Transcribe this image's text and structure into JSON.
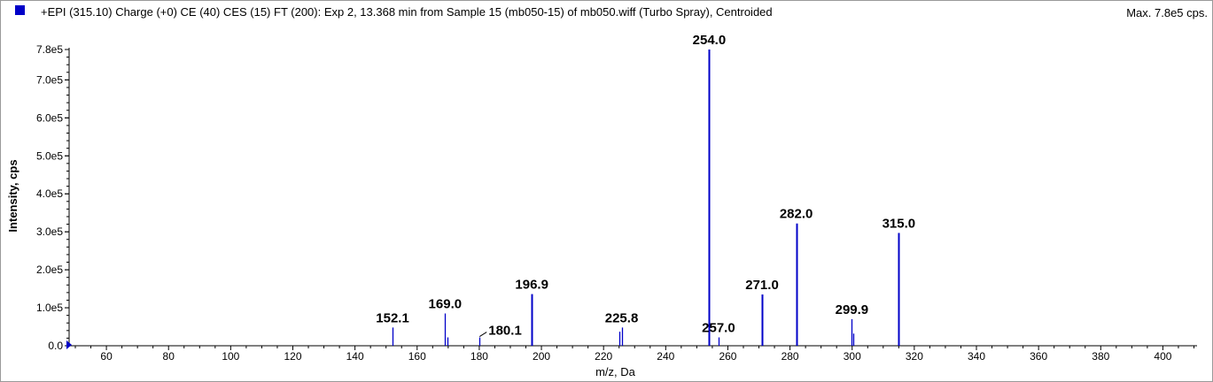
{
  "header": {
    "title": "+EPI (315.10) Charge (+0) CE (40) CES (15) FT (200): Exp 2, 13.368 min from Sample 15 (mb050-15) of mb050.wiff (Turbo Spray), Centroided",
    "max_label": "Max. 7.8e5 cps."
  },
  "colors": {
    "series": "#0000c8",
    "axis": "#000000",
    "legend_swatch": "#0000c8"
  },
  "chart_data": {
    "type": "bar",
    "title": "+EPI (315.10) Charge (+0) CE (40) CES (15) FT (200): Exp 2, 13.368 min from Sample 15 (mb050-15) of mb050.wiff (Turbo Spray), Centroided",
    "xlabel": "m/z, Da",
    "ylabel": "Intensity, cps",
    "xlim": [
      48,
      411
    ],
    "ylim": [
      0,
      780000
    ],
    "grid": false,
    "x_ticks": [
      60,
      80,
      100,
      120,
      140,
      160,
      180,
      200,
      220,
      240,
      260,
      280,
      300,
      320,
      340,
      360,
      380,
      400
    ],
    "x_tick_labels": [
      "60",
      "80",
      "100",
      "120",
      "140",
      "160",
      "180",
      "200",
      "220",
      "240",
      "260",
      "280",
      "300",
      "320",
      "340",
      "360",
      "380",
      "400"
    ],
    "y_ticks": [
      0,
      100000,
      200000,
      300000,
      400000,
      500000,
      600000,
      700000,
      780000
    ],
    "y_tick_labels": [
      "0.0",
      "1.0e5",
      "2.0e5",
      "3.0e5",
      "4.0e5",
      "5.0e5",
      "6.0e5",
      "7.0e5",
      "7.8e5"
    ],
    "peaks": [
      {
        "mz": 152.1,
        "intensity": 48000
      },
      {
        "mz": 169.0,
        "intensity": 85000
      },
      {
        "mz": 169.9,
        "intensity": 22000
      },
      {
        "mz": 180.1,
        "intensity": 22000
      },
      {
        "mz": 196.9,
        "intensity": 136000
      },
      {
        "mz": 225.0,
        "intensity": 37000
      },
      {
        "mz": 225.8,
        "intensity": 48000
      },
      {
        "mz": 254.0,
        "intensity": 780000
      },
      {
        "mz": 257.0,
        "intensity": 22000
      },
      {
        "mz": 271.0,
        "intensity": 135000
      },
      {
        "mz": 282.0,
        "intensity": 322000
      },
      {
        "mz": 299.9,
        "intensity": 70000
      },
      {
        "mz": 300.3,
        "intensity": 32000
      },
      {
        "mz": 315.0,
        "intensity": 297000
      }
    ],
    "annotations": [
      "152.1",
      "169.0",
      "180.1",
      "196.9",
      "225.8",
      "254.0",
      "257.0",
      "271.0",
      "282.0",
      "299.9",
      "315.0"
    ]
  }
}
